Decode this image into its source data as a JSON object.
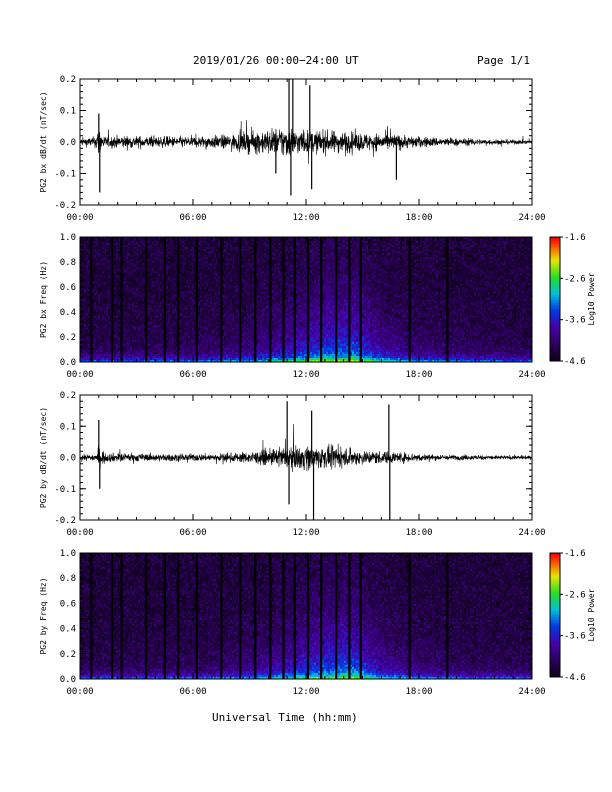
{
  "header": {
    "title": "2019/01/26  00:00−24:00 UT",
    "page": "Page 1/1"
  },
  "footer": {
    "xlabel": "Universal Time (hh:mm)"
  },
  "chart_data": [
    {
      "type": "line",
      "ylabel": "PG2 bx dB/dt (nT/sec)",
      "xlim": [
        0,
        24
      ],
      "ylim": [
        -0.2,
        0.2
      ],
      "yticks": [
        "0.2",
        "0.1",
        "0.0",
        "-0.1",
        "-0.2"
      ],
      "xticks": [
        "00:00",
        "06:00",
        "12:00",
        "18:00",
        "24:00"
      ],
      "envelope": [
        {
          "x": 0,
          "amp": 0.02
        },
        {
          "x": 0.8,
          "amp": 0.03
        },
        {
          "x": 1.0,
          "amp": 0.09
        },
        {
          "x": 1.3,
          "amp": 0.03
        },
        {
          "x": 2.2,
          "amp": 0.035
        },
        {
          "x": 4,
          "amp": 0.03
        },
        {
          "x": 6,
          "amp": 0.03
        },
        {
          "x": 8,
          "amp": 0.04
        },
        {
          "x": 9,
          "amp": 0.06
        },
        {
          "x": 10,
          "amp": 0.07
        },
        {
          "x": 11,
          "amp": 0.09
        },
        {
          "x": 11.5,
          "amp": 0.07
        },
        {
          "x": 12.5,
          "amp": 0.06
        },
        {
          "x": 14,
          "amp": 0.06
        },
        {
          "x": 15,
          "amp": 0.05
        },
        {
          "x": 16.5,
          "amp": 0.045
        },
        {
          "x": 18,
          "amp": 0.03
        },
        {
          "x": 20,
          "amp": 0.02
        },
        {
          "x": 22,
          "amp": 0.015
        },
        {
          "x": 24,
          "amp": 0.01
        }
      ],
      "spikes": [
        {
          "x": 1.0,
          "y": 0.09
        },
        {
          "x": 1.05,
          "y": -0.16
        },
        {
          "x": 10.4,
          "y": -0.1
        },
        {
          "x": 11.1,
          "y": 0.2
        },
        {
          "x": 11.2,
          "y": -0.17
        },
        {
          "x": 11.3,
          "y": 0.2
        },
        {
          "x": 12.2,
          "y": 0.18
        },
        {
          "x": 12.3,
          "y": -0.15
        },
        {
          "x": 16.8,
          "y": -0.12
        }
      ]
    },
    {
      "type": "heatmap",
      "ylabel": "PG2 bx Freq (Hz)",
      "colorbar_label": "Log10 Power",
      "colorbar_ticks": [
        "-1.6",
        "-2.6",
        "-3.6",
        "-4.6"
      ],
      "clim": [
        -4.6,
        -1.6
      ],
      "xlim": [
        0,
        24
      ],
      "ylim": [
        0,
        1.0
      ],
      "yticks": [
        "1.0",
        "0.8",
        "0.6",
        "0.4",
        "0.2",
        "0.0"
      ],
      "xticks": [
        "00:00",
        "06:00",
        "12:00",
        "18:00",
        "24:00"
      ],
      "gaps_hours": [
        0.6,
        1.7,
        2.2,
        3.5,
        4.5,
        5.2,
        6.2,
        7.5,
        8.5,
        9.3,
        10.1,
        10.8,
        11.4,
        12.1,
        12.8,
        13.6,
        14.3,
        14.9,
        17.5,
        19.5
      ],
      "activity": [
        {
          "x": 0,
          "level": 0.15
        },
        {
          "x": 6,
          "level": 0.2
        },
        {
          "x": 9,
          "level": 0.35
        },
        {
          "x": 11,
          "level": 0.55
        },
        {
          "x": 13,
          "level": 0.8
        },
        {
          "x": 14.5,
          "level": 0.85
        },
        {
          "x": 16,
          "level": 0.5
        },
        {
          "x": 18,
          "level": 0.3
        },
        {
          "x": 21,
          "level": 0.2
        },
        {
          "x": 24,
          "level": 0.15
        }
      ]
    },
    {
      "type": "line",
      "ylabel": "PG2 by dB/dt (nT/sec)",
      "xlim": [
        0,
        24
      ],
      "ylim": [
        -0.2,
        0.2
      ],
      "yticks": [
        "0.2",
        "0.1",
        "0.0",
        "-0.1",
        "-0.2"
      ],
      "xticks": [
        "00:00",
        "06:00",
        "12:00",
        "18:00",
        "24:00"
      ],
      "envelope": [
        {
          "x": 0,
          "amp": 0.015
        },
        {
          "x": 0.8,
          "amp": 0.02
        },
        {
          "x": 1.0,
          "amp": 0.06
        },
        {
          "x": 1.3,
          "amp": 0.025
        },
        {
          "x": 4,
          "amp": 0.02
        },
        {
          "x": 7,
          "amp": 0.02
        },
        {
          "x": 9,
          "amp": 0.03
        },
        {
          "x": 10.5,
          "amp": 0.05
        },
        {
          "x": 12,
          "amp": 0.07
        },
        {
          "x": 13,
          "amp": 0.06
        },
        {
          "x": 15,
          "amp": 0.04
        },
        {
          "x": 17,
          "amp": 0.03
        },
        {
          "x": 19,
          "amp": 0.015
        },
        {
          "x": 24,
          "amp": 0.01
        }
      ],
      "spikes": [
        {
          "x": 1.0,
          "y": 0.12
        },
        {
          "x": 1.05,
          "y": -0.1
        },
        {
          "x": 11.0,
          "y": 0.18
        },
        {
          "x": 11.1,
          "y": -0.15
        },
        {
          "x": 12.3,
          "y": 0.15
        },
        {
          "x": 12.4,
          "y": -0.2
        },
        {
          "x": 16.4,
          "y": 0.17
        },
        {
          "x": 16.45,
          "y": -0.2
        }
      ]
    },
    {
      "type": "heatmap",
      "ylabel": "PG2 by Freq (Hz)",
      "colorbar_label": "Log10 Power",
      "colorbar_ticks": [
        "-1.6",
        "-2.6",
        "-3.6",
        "-4.6"
      ],
      "clim": [
        -4.6,
        -1.6
      ],
      "xlim": [
        0,
        24
      ],
      "ylim": [
        0,
        1.0
      ],
      "yticks": [
        "1.0",
        "0.8",
        "0.6",
        "0.4",
        "0.2",
        "0.0"
      ],
      "xticks": [
        "00:00",
        "06:00",
        "12:00",
        "18:00",
        "24:00"
      ],
      "gaps_hours": [
        0.6,
        1.7,
        2.2,
        3.5,
        4.5,
        5.2,
        6.2,
        7.5,
        8.5,
        9.3,
        10.1,
        10.8,
        11.4,
        12.1,
        12.8,
        13.6,
        14.3,
        14.9,
        17.5,
        19.5
      ],
      "activity": [
        {
          "x": 0,
          "level": 0.15
        },
        {
          "x": 6,
          "level": 0.2
        },
        {
          "x": 9,
          "level": 0.35
        },
        {
          "x": 11,
          "level": 0.55
        },
        {
          "x": 13,
          "level": 0.8
        },
        {
          "x": 14.5,
          "level": 0.85
        },
        {
          "x": 16,
          "level": 0.5
        },
        {
          "x": 18,
          "level": 0.3
        },
        {
          "x": 21,
          "level": 0.2
        },
        {
          "x": 24,
          "level": 0.15
        }
      ]
    }
  ]
}
